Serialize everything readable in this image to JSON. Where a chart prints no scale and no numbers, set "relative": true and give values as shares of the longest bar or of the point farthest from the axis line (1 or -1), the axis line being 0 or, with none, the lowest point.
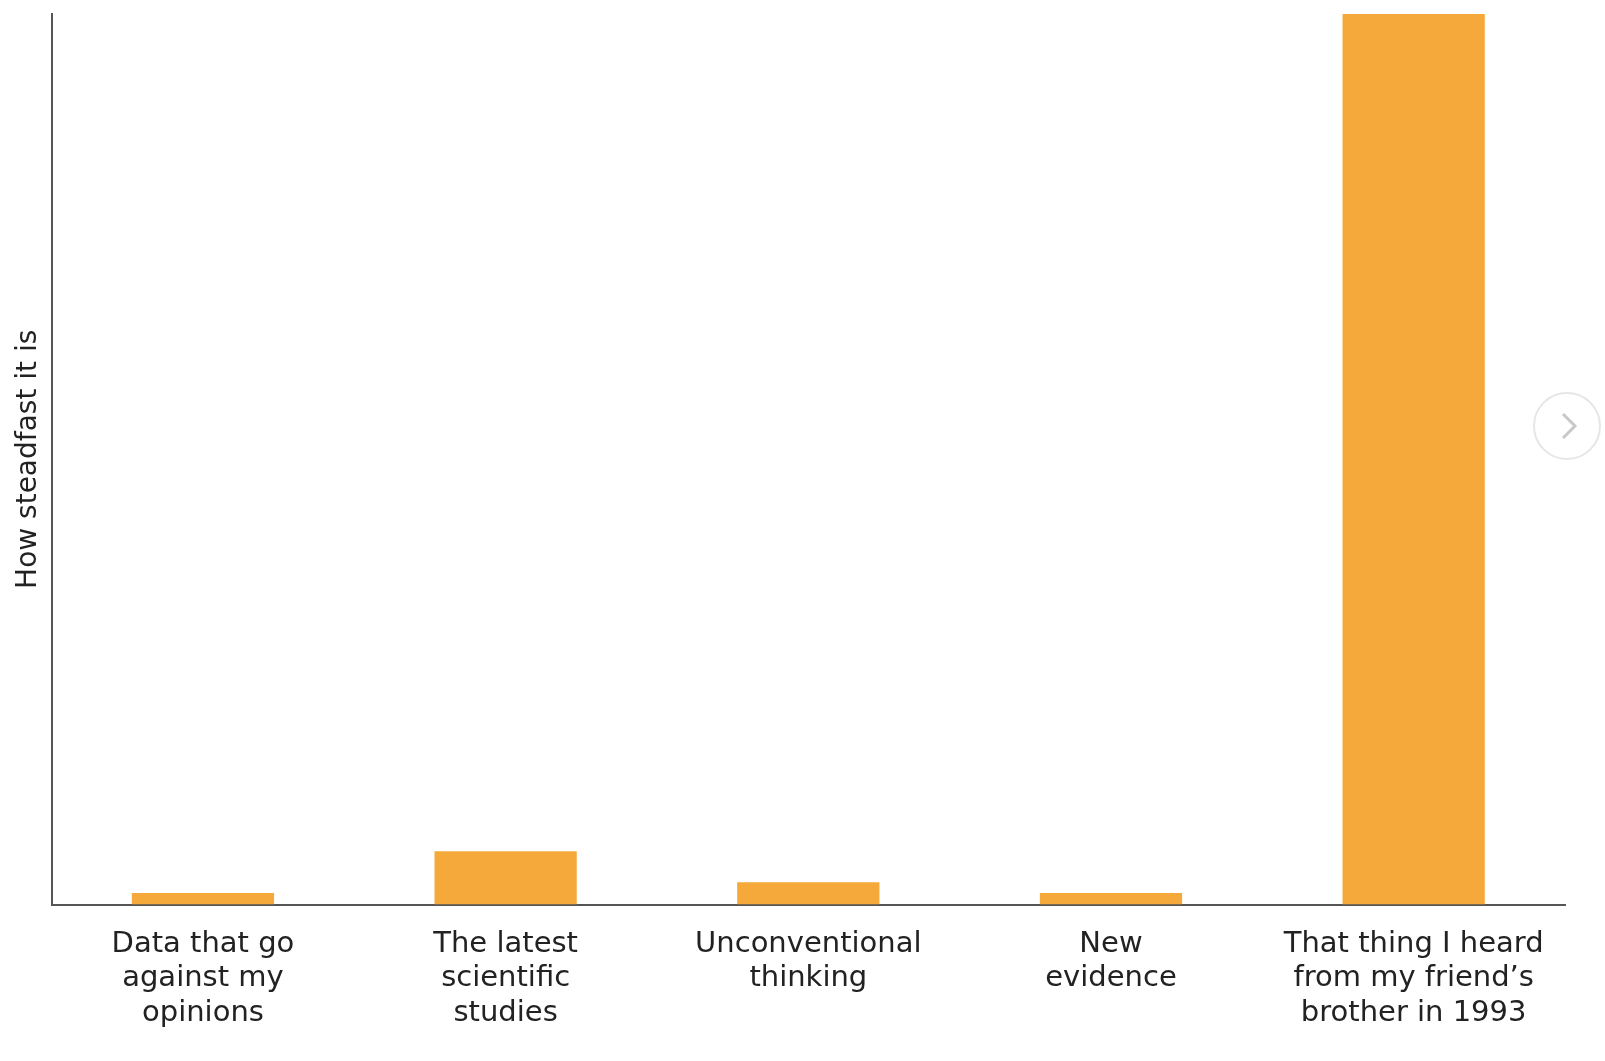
{
  "chart_data": {
    "type": "bar",
    "relative": true,
    "ylabel": "How steadfast it is",
    "categories": [
      "Data that go\nagainst my\nopinions",
      "The latest\nscientific\nstudies",
      "Unconventional\nthinking",
      "New\nevidence",
      "That thing I heard\nfrom my friend’s\nbrother in 1993"
    ],
    "values": [
      0.013,
      0.06,
      0.025,
      0.013,
      1
    ],
    "color": "#f5a93a",
    "grid": false,
    "legend": false
  }
}
